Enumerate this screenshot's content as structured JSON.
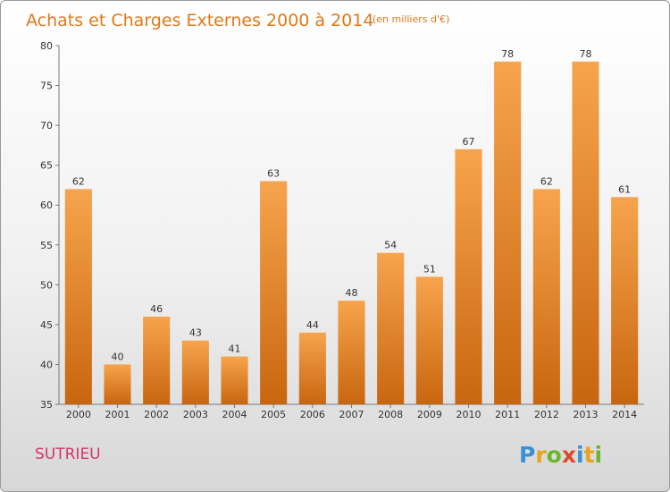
{
  "title": "Achats et Charges Externes 2000 à 2014",
  "unit": "(en milliers d'€)",
  "place": "SUTRIEU",
  "logo": {
    "letters": [
      "P",
      "r",
      "o",
      "x",
      "i",
      "t",
      "i"
    ],
    "colors": [
      "#3a8fd6",
      "#e8a320",
      "#6ab72e",
      "#e04a2a",
      "#3a8fd6",
      "#e8a320",
      "#6ab72e"
    ]
  },
  "colors": {
    "bar_top": "#f7a44d",
    "bar_bottom": "#c8660f",
    "title": "#e07a18",
    "place": "#d6336c"
  },
  "chart_data": {
    "type": "bar",
    "title": "Achats et Charges Externes 2000 à 2014",
    "subtitle": "(en milliers d'€)",
    "categories": [
      "2000",
      "2001",
      "2002",
      "2003",
      "2004",
      "2005",
      "2006",
      "2007",
      "2008",
      "2009",
      "2010",
      "2011",
      "2012",
      "2013",
      "2014"
    ],
    "values": [
      62,
      40,
      46,
      43,
      41,
      63,
      44,
      48,
      54,
      51,
      67,
      78,
      62,
      78,
      61
    ],
    "xlabel": "",
    "ylabel": "",
    "ylim": [
      35,
      80
    ],
    "yticks": [
      35,
      40,
      45,
      50,
      55,
      60,
      65,
      70,
      75,
      80
    ],
    "grid": false,
    "legend": "none"
  }
}
